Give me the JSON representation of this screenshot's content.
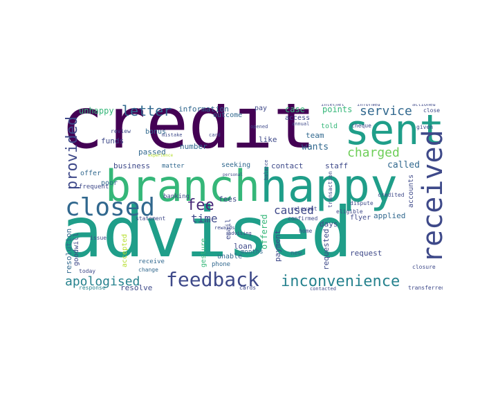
{
  "palette": {
    "dark_purple": "#440154",
    "purple": "#482878",
    "indigo": "#3e4989",
    "blue": "#31688e",
    "steel": "#26828e",
    "teal": "#1f9e89",
    "green": "#35b779",
    "lime": "#6ece58",
    "yellow_green": "#b5de2b",
    "yellow": "#fde725"
  },
  "words": [
    "credit",
    "sent",
    "branch",
    "happy",
    "advised",
    "closed",
    "received",
    "feedback",
    "inconvenience",
    "apologised",
    "provided",
    "letter",
    "service",
    "charged",
    "fee",
    "time",
    "caused",
    "information",
    "unhappy",
    "case",
    "points",
    "wants",
    "called",
    "business",
    "funds",
    "bonus",
    "passed",
    "number",
    "contact",
    "staff",
    "team",
    "told",
    "fees",
    "like",
    "applied",
    "days",
    "flyer",
    "requested",
    "request",
    "payment",
    "loan",
    "email",
    "offered",
    "unable",
    "phone",
    "resolution",
    "goodwill",
    "accepted",
    "resolve",
    "offer",
    "poor",
    "seeking",
    "matter",
    "accounts",
    "outcome",
    "pay",
    "access",
    "gesture",
    "months",
    "new",
    "frequent",
    "banking",
    "receive",
    "change",
    "response",
    "today",
    "cards",
    "relevant",
    "cheque",
    "given",
    "close",
    "actioned",
    "informed",
    "internet",
    "annual",
    "dispute",
    "credited",
    "eligible",
    "closure",
    "transferred",
    "contacted",
    "statement",
    "review",
    "issue",
    "rewards",
    "transaction",
    "confirmed",
    "home",
    "advising",
    "balance",
    "personal",
    "opened",
    "card",
    "mistake",
    "experience"
  ]
}
